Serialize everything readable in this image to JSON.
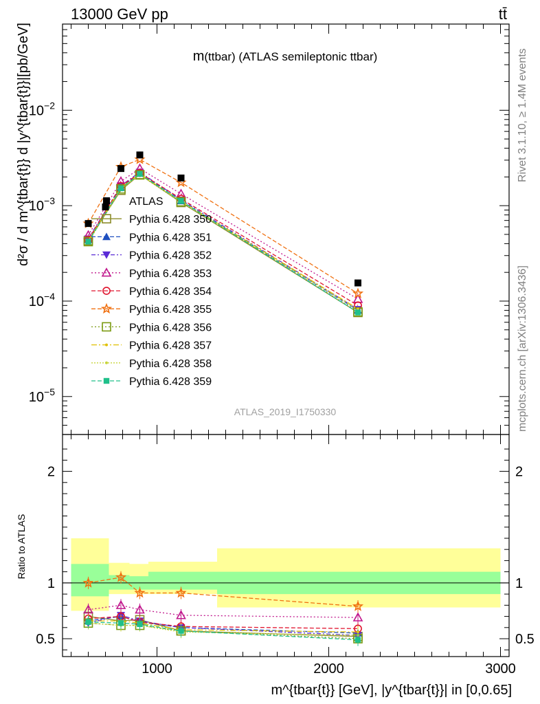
{
  "header": {
    "energy_label": "13000 GeV pp",
    "process_label": "tt̄",
    "rivet_label": "Rivet 3.1.10, ≥ 1.4M events",
    "mcplots_label": "mcplots.cern.ch [arXiv:1306.3436]",
    "analysis_id": "ATLAS_2019_I1750330"
  },
  "chart_data": [
    {
      "type": "line",
      "panel": "main",
      "title_main": "m",
      "title_rest": "(ttbar) (ATLAS semileptonic ttbar)",
      "ylabel": "d²σ / d m^{tbar{t}} d |y^{tbar{t}}|[pb/GeV]",
      "yscale": "log",
      "ylim": [
        4e-06,
        0.08
      ],
      "xlim": [
        450,
        3050
      ],
      "y_tick_labels": [
        "10^-5",
        "10^-4",
        "10^-3",
        "10^-2"
      ],
      "legend_position": "middle-left",
      "data_series": {
        "name": "ATLAS",
        "x": [
          600,
          700,
          790,
          900,
          1140,
          2170
        ],
        "y": [
          0.00065,
          0.00097,
          0.00245,
          0.0034,
          0.00195,
          0.000155
        ]
      },
      "series": [
        {
          "name": "Pythia 6.428 350",
          "color": "#8c8c2a",
          "marker": "open-square",
          "dash": "solid",
          "x": [
            600,
            790,
            900,
            1140,
            2170
          ],
          "y": [
            0.00043,
            0.00145,
            0.00212,
            0.00108,
            7.6e-05
          ]
        },
        {
          "name": "Pythia 6.428 351",
          "color": "#1f4fbf",
          "marker": "filled-triangle-up",
          "dash": "6,3",
          "x": [
            600,
            790,
            900,
            1140,
            2170
          ],
          "y": [
            0.00044,
            0.00155,
            0.0022,
            0.00112,
            8e-05
          ]
        },
        {
          "name": "Pythia 6.428 352",
          "color": "#5a2bd6",
          "marker": "filled-triangle-down",
          "dash": "6,3,2,3",
          "x": [
            600,
            790,
            900,
            1140,
            2170
          ],
          "y": [
            0.00045,
            0.00162,
            0.00225,
            0.00115,
            8.2e-05
          ]
        },
        {
          "name": "Pythia 6.428 353",
          "color": "#c0168c",
          "marker": "open-triangle-up",
          "dash": "2,3",
          "x": [
            600,
            790,
            900,
            1140,
            2170
          ],
          "y": [
            0.00049,
            0.0018,
            0.00245,
            0.00133,
            0.000105
          ]
        },
        {
          "name": "Pythia 6.428 354",
          "color": "#e0142e",
          "marker": "open-circle",
          "dash": "6,3",
          "x": [
            600,
            790,
            900,
            1140,
            2170
          ],
          "y": [
            0.00044,
            0.0016,
            0.0022,
            0.00118,
            9e-05
          ]
        },
        {
          "name": "Pythia 6.428 355",
          "color": "#f07010",
          "marker": "open-star",
          "dash": "6,3",
          "x": [
            600,
            790,
            900,
            1140,
            2170
          ],
          "y": [
            0.00065,
            0.00255,
            0.00305,
            0.00175,
            0.00012
          ]
        },
        {
          "name": "Pythia 6.428 356",
          "color": "#7a9a10",
          "marker": "open-square",
          "dash": "2,3",
          "x": [
            600,
            790,
            900,
            1140,
            2170
          ],
          "y": [
            0.00042,
            0.0015,
            0.0021,
            0.0011,
            7.7e-05
          ]
        },
        {
          "name": "Pythia 6.428 357",
          "color": "#e0c000",
          "marker": "small-dot",
          "dash": "8,3,2,3",
          "x": [
            600,
            790,
            900,
            1140,
            2170
          ],
          "y": [
            0.00043,
            0.00155,
            0.00215,
            0.00112,
            8.3e-05
          ]
        },
        {
          "name": "Pythia 6.428 358",
          "color": "#c8d43a",
          "marker": "small-dot",
          "dash": "2,2",
          "x": [
            600,
            790,
            900,
            1140,
            2170
          ],
          "y": [
            0.00041,
            0.0015,
            0.0021,
            0.0011,
            8.1e-05
          ]
        },
        {
          "name": "Pythia 6.428 359",
          "color": "#20c08a",
          "marker": "filled-square",
          "dash": "6,3",
          "x": [
            600,
            790,
            900,
            1140,
            2170
          ],
          "y": [
            0.00042,
            0.00152,
            0.00215,
            0.00112,
            7.6e-05
          ]
        }
      ]
    },
    {
      "type": "line",
      "panel": "ratio",
      "ylabel": "Ratio to ATLAS",
      "ylim": [
        0.34,
        2.33
      ],
      "xlim": [
        450,
        3050
      ],
      "y_tick_labels": [
        "0.5",
        "1",
        "2"
      ],
      "x_tick_labels": [
        "1000",
        "2000",
        "3000"
      ],
      "xlabel": "m^{tbar{t}} [GeV], |y^{tbar{t}}| in [0,0.65]",
      "uncertainty_bands": [
        {
          "x0": 500,
          "x1": 600,
          "y_inner": [
            0.88,
            1.17
          ],
          "y_outer": [
            0.75,
            1.4
          ]
        },
        {
          "x0": 600,
          "x1": 720,
          "y_inner": [
            0.88,
            1.17
          ],
          "y_outer": [
            0.75,
            1.4
          ]
        },
        {
          "x0": 720,
          "x1": 840,
          "y_inner": [
            0.94,
            1.07
          ],
          "y_outer": [
            0.9,
            1.18
          ]
        },
        {
          "x0": 840,
          "x1": 950,
          "y_inner": [
            0.94,
            1.06
          ],
          "y_outer": [
            0.9,
            1.17
          ]
        },
        {
          "x0": 950,
          "x1": 1350,
          "y_inner": [
            0.94,
            1.1
          ],
          "y_outer": [
            0.9,
            1.19
          ]
        },
        {
          "x0": 1350,
          "x1": 3000,
          "y_inner": [
            0.9,
            1.1
          ],
          "y_outer": [
            0.78,
            1.31
          ]
        }
      ],
      "band_colors": {
        "inner": "#99ff99",
        "outer": "#ffff99"
      },
      "series": [
        {
          "name": "Pythia 6.428 350",
          "x": [
            600,
            790,
            900,
            1140,
            2170
          ],
          "y": [
            0.7,
            0.66,
            0.67,
            0.57,
            0.52
          ]
        },
        {
          "name": "Pythia 6.428 351",
          "x": [
            600,
            790,
            900,
            1140,
            2170
          ],
          "y": [
            0.66,
            0.7,
            0.65,
            0.6,
            0.55
          ]
        },
        {
          "name": "Pythia 6.428 352",
          "x": [
            600,
            790,
            900,
            1140,
            2170
          ],
          "y": [
            0.64,
            0.71,
            0.66,
            0.6,
            0.53
          ]
        },
        {
          "name": "Pythia 6.428 353",
          "x": [
            600,
            790,
            900,
            1140,
            2170
          ],
          "y": [
            0.76,
            0.8,
            0.76,
            0.71,
            0.69
          ]
        },
        {
          "name": "Pythia 6.428 354",
          "x": [
            600,
            790,
            900,
            1140,
            2170
          ],
          "y": [
            0.68,
            0.7,
            0.65,
            0.61,
            0.59
          ]
        },
        {
          "name": "Pythia 6.428 355",
          "x": [
            600,
            790,
            900,
            1140,
            2170
          ],
          "y": [
            1.0,
            1.05,
            0.91,
            0.91,
            0.79
          ]
        },
        {
          "name": "Pythia 6.428 356",
          "x": [
            600,
            790,
            900,
            1140,
            2170
          ],
          "y": [
            0.64,
            0.62,
            0.62,
            0.57,
            0.5
          ]
        },
        {
          "name": "Pythia 6.428 357",
          "x": [
            600,
            790,
            900,
            1140,
            2170
          ],
          "y": [
            0.66,
            0.66,
            0.64,
            0.58,
            0.56
          ]
        },
        {
          "name": "Pythia 6.428 358",
          "x": [
            600,
            790,
            900,
            1140,
            2170
          ],
          "y": [
            0.64,
            0.62,
            0.62,
            0.56,
            0.53
          ]
        },
        {
          "name": "Pythia 6.428 359",
          "x": [
            600,
            790,
            900,
            1140,
            2170
          ],
          "y": [
            0.65,
            0.64,
            0.63,
            0.57,
            0.49
          ]
        }
      ]
    }
  ]
}
